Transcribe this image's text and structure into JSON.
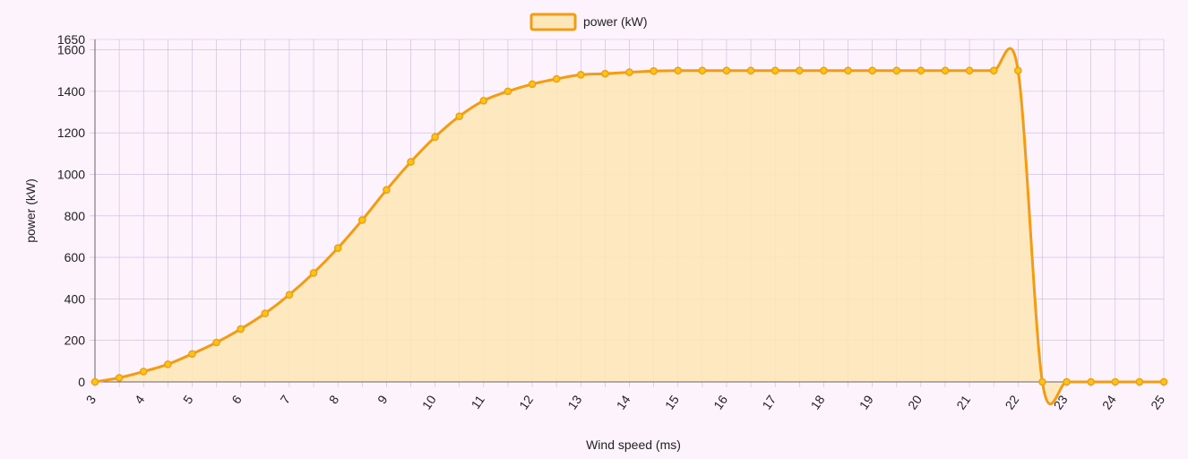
{
  "chart_data": {
    "type": "line",
    "style": "area",
    "legend": {
      "position": "top",
      "label": "power (kW)"
    },
    "xlabel": "Wind speed (ms)",
    "ylabel": "power (kW)",
    "xlim": [
      3,
      25
    ],
    "ylim": [
      0,
      1650
    ],
    "x_ticks": [
      3,
      4,
      5,
      6,
      7,
      8,
      9,
      10,
      11,
      12,
      13,
      14,
      15,
      16,
      17,
      18,
      19,
      20,
      21,
      22,
      23,
      24,
      25
    ],
    "y_ticks": [
      0,
      200,
      400,
      600,
      800,
      1000,
      1200,
      1400,
      1600,
      1650
    ],
    "grid": true,
    "colors": {
      "line": "#f39c12",
      "fill": "#fde7b9",
      "point": "#f5c518",
      "grid": "#c9b9e0",
      "background": "#fdf3fd"
    },
    "series": [
      {
        "name": "power (kW)",
        "points": [
          [
            3,
            0
          ],
          [
            3.5,
            20
          ],
          [
            4,
            50
          ],
          [
            4.5,
            85
          ],
          [
            5,
            135
          ],
          [
            5.5,
            190
          ],
          [
            6,
            255
          ],
          [
            6.5,
            330
          ],
          [
            7,
            420
          ],
          [
            7.5,
            525
          ],
          [
            8,
            645
          ],
          [
            8.5,
            780
          ],
          [
            9,
            925
          ],
          [
            9.5,
            1060
          ],
          [
            10,
            1180
          ],
          [
            10.5,
            1280
          ],
          [
            11,
            1355
          ],
          [
            11.5,
            1400
          ],
          [
            12,
            1435
          ],
          [
            12.5,
            1460
          ],
          [
            13,
            1480
          ],
          [
            13.5,
            1485
          ],
          [
            14,
            1492
          ],
          [
            14.5,
            1498
          ],
          [
            15,
            1500
          ],
          [
            15.5,
            1500
          ],
          [
            16,
            1500
          ],
          [
            16.5,
            1500
          ],
          [
            17,
            1500
          ],
          [
            17.5,
            1500
          ],
          [
            18,
            1500
          ],
          [
            18.5,
            1500
          ],
          [
            19,
            1500
          ],
          [
            19.5,
            1500
          ],
          [
            20,
            1500
          ],
          [
            20.5,
            1500
          ],
          [
            21,
            1500
          ],
          [
            21.5,
            1500
          ],
          [
            22,
            1500
          ],
          [
            22.5,
            0
          ],
          [
            23,
            0
          ],
          [
            23.5,
            0
          ],
          [
            24,
            0
          ],
          [
            24.5,
            0
          ],
          [
            25,
            0
          ]
        ]
      }
    ]
  }
}
